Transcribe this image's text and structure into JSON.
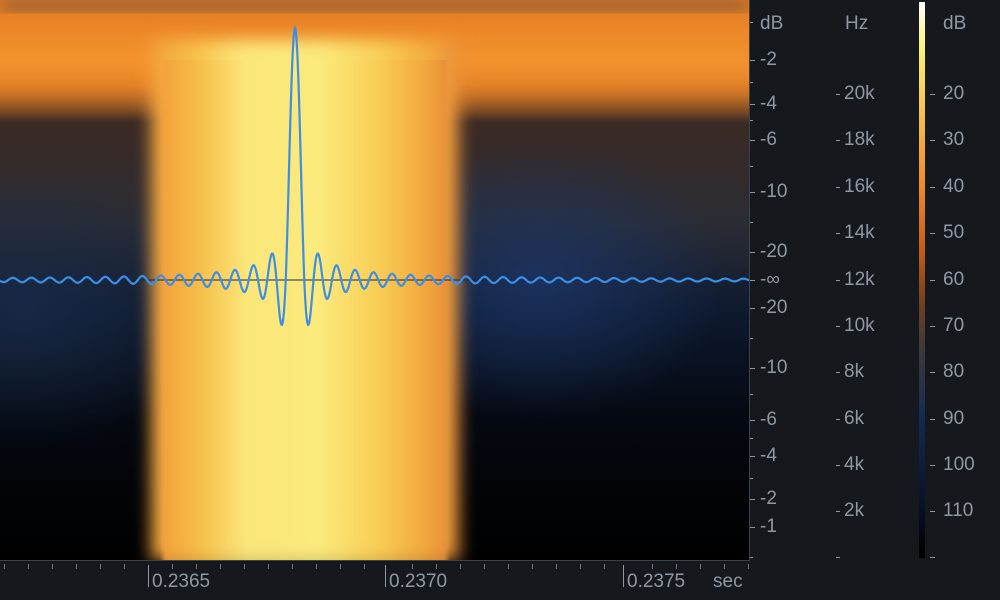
{
  "amplitude_ruler": {
    "unit": "dB",
    "labels": [
      "-2",
      "-4",
      "-6",
      "-10",
      "-20",
      "-∞",
      "-20",
      "-10",
      "-6",
      "-4",
      "-2",
      "-1"
    ]
  },
  "frequency_ruler": {
    "unit": "Hz",
    "labels": [
      "20k",
      "18k",
      "16k",
      "14k",
      "12k",
      "10k",
      "8k",
      "6k",
      "4k",
      "2k"
    ]
  },
  "color_scale": {
    "unit": "dB",
    "labels": [
      "20",
      "30",
      "40",
      "50",
      "60",
      "70",
      "80",
      "90",
      "100",
      "110"
    ]
  },
  "time_ruler": {
    "unit": "sec",
    "labels": [
      "0.2365",
      "0.2370",
      "0.2375"
    ]
  },
  "colors": {
    "waveform": "#3d8fe6",
    "centerline": "#0d2a50",
    "background": "#15191e",
    "label_text": "#8f98a2"
  }
}
